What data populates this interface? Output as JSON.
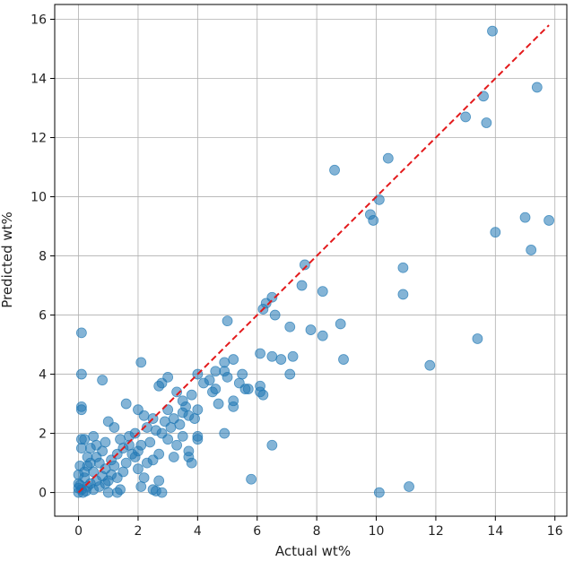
{
  "chart_data": {
    "type": "scatter",
    "xlabel": "Actual wt%",
    "ylabel": "Predicted wt%",
    "xlim": [
      -0.8,
      16.4
    ],
    "ylim": [
      -0.8,
      16.5
    ],
    "x_ticks": [
      "0",
      "2",
      "4",
      "6",
      "8",
      "10",
      "12",
      "14",
      "16"
    ],
    "y_ticks": [
      "0",
      "2",
      "4",
      "6",
      "8",
      "10",
      "12",
      "14",
      "16"
    ],
    "grid": true,
    "point_color": "#1f77b4",
    "reference_line": {
      "style": "dashed",
      "color": "#e31a1c",
      "from": [
        0,
        0
      ],
      "to": [
        15.8,
        15.8
      ]
    },
    "points": [
      [
        13.9,
        15.6
      ],
      [
        15.4,
        13.7
      ],
      [
        13.6,
        13.4
      ],
      [
        13.7,
        12.5
      ],
      [
        13.0,
        12.7
      ],
      [
        10.4,
        11.3
      ],
      [
        8.6,
        10.9
      ],
      [
        10.1,
        9.9
      ],
      [
        9.8,
        9.4
      ],
      [
        9.9,
        9.2
      ],
      [
        15.0,
        9.3
      ],
      [
        15.8,
        9.2
      ],
      [
        14.0,
        8.8
      ],
      [
        15.2,
        8.2
      ],
      [
        10.9,
        7.6
      ],
      [
        10.9,
        6.7
      ],
      [
        7.6,
        7.7
      ],
      [
        7.5,
        7.0
      ],
      [
        8.2,
        6.8
      ],
      [
        6.5,
        6.6
      ],
      [
        6.3,
        6.4
      ],
      [
        6.2,
        6.2
      ],
      [
        6.6,
        6.0
      ],
      [
        5.0,
        5.8
      ],
      [
        7.1,
        5.6
      ],
      [
        8.8,
        5.7
      ],
      [
        7.8,
        5.5
      ],
      [
        8.2,
        5.3
      ],
      [
        13.4,
        5.2
      ],
      [
        6.1,
        4.7
      ],
      [
        6.5,
        4.6
      ],
      [
        6.8,
        4.5
      ],
      [
        7.2,
        4.6
      ],
      [
        8.9,
        4.5
      ],
      [
        7.1,
        4.0
      ],
      [
        11.8,
        4.3
      ],
      [
        0.1,
        5.4
      ],
      [
        2.1,
        4.4
      ],
      [
        0.1,
        4.0
      ],
      [
        0.8,
        3.8
      ],
      [
        4.9,
        4.4
      ],
      [
        4.9,
        4.1
      ],
      [
        5.2,
        4.5
      ],
      [
        5.5,
        4.0
      ],
      [
        5.0,
        3.9
      ],
      [
        5.4,
        3.7
      ],
      [
        5.7,
        3.5
      ],
      [
        4.6,
        4.1
      ],
      [
        4.4,
        3.8
      ],
      [
        4.6,
        3.5
      ],
      [
        4.2,
        3.7
      ],
      [
        4.7,
        3.0
      ],
      [
        5.2,
        3.1
      ],
      [
        5.2,
        2.9
      ],
      [
        6.1,
        3.4
      ],
      [
        6.2,
        3.3
      ],
      [
        5.6,
        3.5
      ],
      [
        4.5,
        3.4
      ],
      [
        6.1,
        3.6
      ],
      [
        4.0,
        4.0
      ],
      [
        3.0,
        3.9
      ],
      [
        2.8,
        3.7
      ],
      [
        2.7,
        3.6
      ],
      [
        3.3,
        3.4
      ],
      [
        3.5,
        3.1
      ],
      [
        3.6,
        2.9
      ],
      [
        3.8,
        3.3
      ],
      [
        4.0,
        2.8
      ],
      [
        3.7,
        2.6
      ],
      [
        3.9,
        2.5
      ],
      [
        3.4,
        2.3
      ],
      [
        3.5,
        2.7
      ],
      [
        3.2,
        2.5
      ],
      [
        3.1,
        2.2
      ],
      [
        3.0,
        2.8
      ],
      [
        2.9,
        2.4
      ],
      [
        2.8,
        2.0
      ],
      [
        3.0,
        1.8
      ],
      [
        3.3,
        1.6
      ],
      [
        3.5,
        1.9
      ],
      [
        3.7,
        1.4
      ],
      [
        3.7,
        1.2
      ],
      [
        3.8,
        1.0
      ],
      [
        4.0,
        1.8
      ],
      [
        3.2,
        1.2
      ],
      [
        4.0,
        1.9
      ],
      [
        4.9,
        2.0
      ],
      [
        6.5,
        1.6
      ],
      [
        5.8,
        0.45
      ],
      [
        2.0,
        2.8
      ],
      [
        1.6,
        3.0
      ],
      [
        2.2,
        2.6
      ],
      [
        2.5,
        2.5
      ],
      [
        2.3,
        2.2
      ],
      [
        2.6,
        2.1
      ],
      [
        1.9,
        2.0
      ],
      [
        1.7,
        1.9
      ],
      [
        2.1,
        1.6
      ],
      [
        2.4,
        1.7
      ],
      [
        2.7,
        1.3
      ],
      [
        2.5,
        1.1
      ],
      [
        2.3,
        1.0
      ],
      [
        2.0,
        0.8
      ],
      [
        2.2,
        0.5
      ],
      [
        1.9,
        1.2
      ],
      [
        1.5,
        1.5
      ],
      [
        1.4,
        1.8
      ],
      [
        1.2,
        2.2
      ],
      [
        1.0,
        2.4
      ],
      [
        1.3,
        1.3
      ],
      [
        1.1,
        1.1
      ],
      [
        0.9,
        1.7
      ],
      [
        0.8,
        1.4
      ],
      [
        0.6,
        1.6
      ],
      [
        0.5,
        1.9
      ],
      [
        0.4,
        1.5
      ],
      [
        0.3,
        1.2
      ],
      [
        0.2,
        1.8
      ],
      [
        0.1,
        1.5
      ],
      [
        0.1,
        1.8
      ],
      [
        0.3,
        0.9
      ],
      [
        0.5,
        0.7
      ],
      [
        0.7,
        1.0
      ],
      [
        0.9,
        0.8
      ],
      [
        1.1,
        0.6
      ],
      [
        1.3,
        0.5
      ],
      [
        1.5,
        0.7
      ],
      [
        1.6,
        1.0
      ],
      [
        1.8,
        1.3
      ],
      [
        1.2,
        0.9
      ],
      [
        0.6,
        0.4
      ],
      [
        0.4,
        0.3
      ],
      [
        0.2,
        0.5
      ],
      [
        0.3,
        0.2
      ],
      [
        0.5,
        0.1
      ],
      [
        0.7,
        0.2
      ],
      [
        0.9,
        0.3
      ],
      [
        1.0,
        0.0
      ],
      [
        1.3,
        0.0
      ],
      [
        1.4,
        0.1
      ],
      [
        0.1,
        0.1
      ],
      [
        0.0,
        0.0
      ],
      [
        0.15,
        0.0
      ],
      [
        0.05,
        0.25
      ],
      [
        0.0,
        0.6
      ],
      [
        0.05,
        0.9
      ],
      [
        0.1,
        2.9
      ],
      [
        0.1,
        2.8
      ],
      [
        0.0,
        0.3
      ],
      [
        0.25,
        0.05
      ],
      [
        0.8,
        0.55
      ],
      [
        1.0,
        0.4
      ],
      [
        1.7,
        1.6
      ],
      [
        2.0,
        1.4
      ],
      [
        0.6,
        1.2
      ],
      [
        2.1,
        0.2
      ],
      [
        2.5,
        0.1
      ],
      [
        2.6,
        0.05
      ],
      [
        2.8,
        0.0
      ],
      [
        2.7,
        0.4
      ],
      [
        10.1,
        0.0
      ],
      [
        11.1,
        0.2
      ],
      [
        0.0,
        0.15
      ],
      [
        0.2,
        0.7
      ],
      [
        0.4,
        1.0
      ]
    ]
  }
}
